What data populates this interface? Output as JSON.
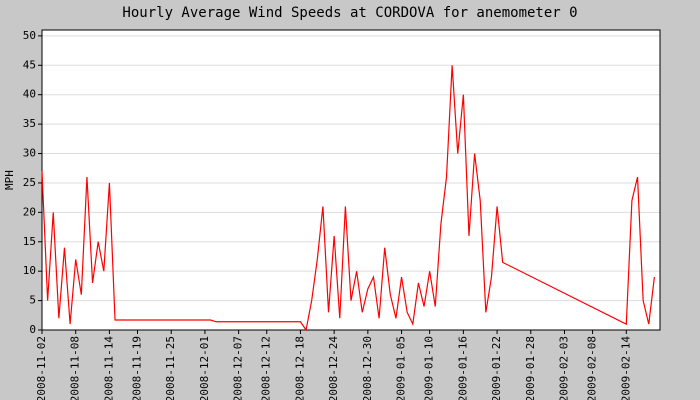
{
  "chart_data": {
    "type": "line",
    "title": "Hourly Average Wind Speeds at CORDOVA for anemometer 0",
    "y_label": "MPH",
    "x": [
      "2008-11-02",
      "2008-11-03",
      "2008-11-04",
      "2008-11-05",
      "2008-11-06",
      "2008-11-07",
      "2008-11-08",
      "2008-11-09",
      "2008-11-10",
      "2008-11-11",
      "2008-11-12",
      "2008-11-13",
      "2008-11-14",
      "2008-11-15",
      "2008-12-02",
      "2008-12-03",
      "2008-12-18",
      "2008-12-19",
      "2008-12-20",
      "2008-12-21",
      "2008-12-22",
      "2008-12-23",
      "2008-12-24",
      "2008-12-25",
      "2008-12-26",
      "2008-12-27",
      "2008-12-28",
      "2008-12-29",
      "2008-12-30",
      "2008-12-31",
      "2009-01-01",
      "2009-01-02",
      "2009-01-03",
      "2009-01-04",
      "2009-01-05",
      "2009-01-06",
      "2009-01-07",
      "2009-01-08",
      "2009-01-09",
      "2009-01-10",
      "2009-01-11",
      "2009-01-12",
      "2009-01-13",
      "2009-01-14",
      "2009-01-15",
      "2009-01-16",
      "2009-01-17",
      "2009-01-18",
      "2009-01-19",
      "2009-01-20",
      "2009-01-21",
      "2009-01-22",
      "2009-01-23",
      "2009-02-14",
      "2009-02-15",
      "2009-02-16",
      "2009-02-17",
      "2009-02-18",
      "2009-02-19"
    ],
    "series": [
      {
        "name": "anemometer 0",
        "color": "#ff0000",
        "values": [
          27,
          5,
          20,
          2,
          14,
          1,
          12,
          6,
          26,
          8,
          15,
          10,
          25,
          1.7,
          1.7,
          1.4,
          1.4,
          0,
          5,
          12,
          21,
          3,
          16,
          2,
          21,
          5,
          10,
          3,
          7,
          9,
          2,
          14,
          6,
          2,
          9,
          3,
          1,
          8,
          4,
          10,
          4,
          18,
          26,
          45,
          30,
          40,
          16,
          30,
          22,
          3,
          9,
          21,
          11.5,
          1,
          22,
          26,
          5,
          1,
          9
        ]
      }
    ],
    "xlim": [
      "2008-11-02",
      "2009-02-20"
    ],
    "xticks": [
      "2008-11-02",
      "2008-11-08",
      "2008-11-14",
      "2008-11-19",
      "2008-11-25",
      "2008-12-01",
      "2008-12-07",
      "2008-12-12",
      "2008-12-18",
      "2008-12-24",
      "2008-12-30",
      "2009-01-05",
      "2009-01-10",
      "2009-01-16",
      "2009-01-22",
      "2009-01-28",
      "2009-02-03",
      "2009-02-08",
      "2009-02-14"
    ],
    "ylim": [
      0,
      51
    ],
    "yticks": [
      0,
      5,
      10,
      15,
      20,
      25,
      30,
      35,
      40,
      45,
      50
    ],
    "grid": true
  }
}
